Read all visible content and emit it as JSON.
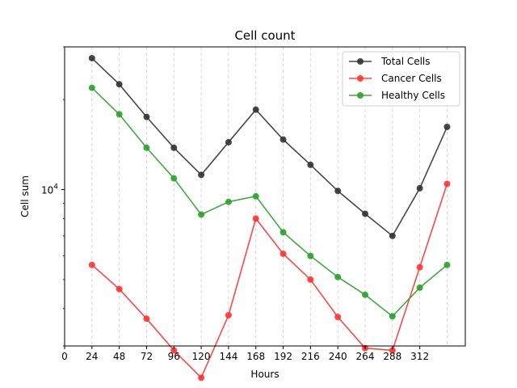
{
  "chart_data": {
    "type": "line",
    "title": "Cell count",
    "xlabel": "Hours",
    "ylabel": "Cell sum",
    "x": [
      24,
      48,
      72,
      96,
      120,
      144,
      168,
      192,
      216,
      240,
      264,
      288,
      312,
      336
    ],
    "xticks": [
      0,
      24,
      48,
      72,
      96,
      120,
      144,
      168,
      192,
      216,
      240,
      264,
      288,
      312
    ],
    "xlim": [
      0,
      352
    ],
    "yscale": "log",
    "ylim": [
      3000,
      30000
    ],
    "yticks": [
      {
        "value": 10000,
        "label": "10",
        "exponent": "4"
      }
    ],
    "grid": "vertical dashed at data x",
    "legend_position": "upper right",
    "series": [
      {
        "name": "Total Cells",
        "color": "#333333",
        "values": [
          27500,
          22500,
          17500,
          13800,
          11200,
          14400,
          18500,
          14700,
          12100,
          9900,
          8300,
          7000,
          10100,
          16200
        ]
      },
      {
        "name": "Cancer Cells",
        "color": "#ff3333",
        "values": [
          5600,
          4650,
          3700,
          2900,
          2350,
          3800,
          8000,
          6100,
          5000,
          3750,
          2950,
          2900,
          5500,
          10450
        ]
      },
      {
        "name": "Healthy Cells",
        "color": "#2ca02c",
        "values": [
          21900,
          17850,
          13800,
          10900,
          8250,
          9100,
          9500,
          7200,
          6000,
          5100,
          4450,
          3770,
          4700,
          5600
        ]
      }
    ]
  }
}
